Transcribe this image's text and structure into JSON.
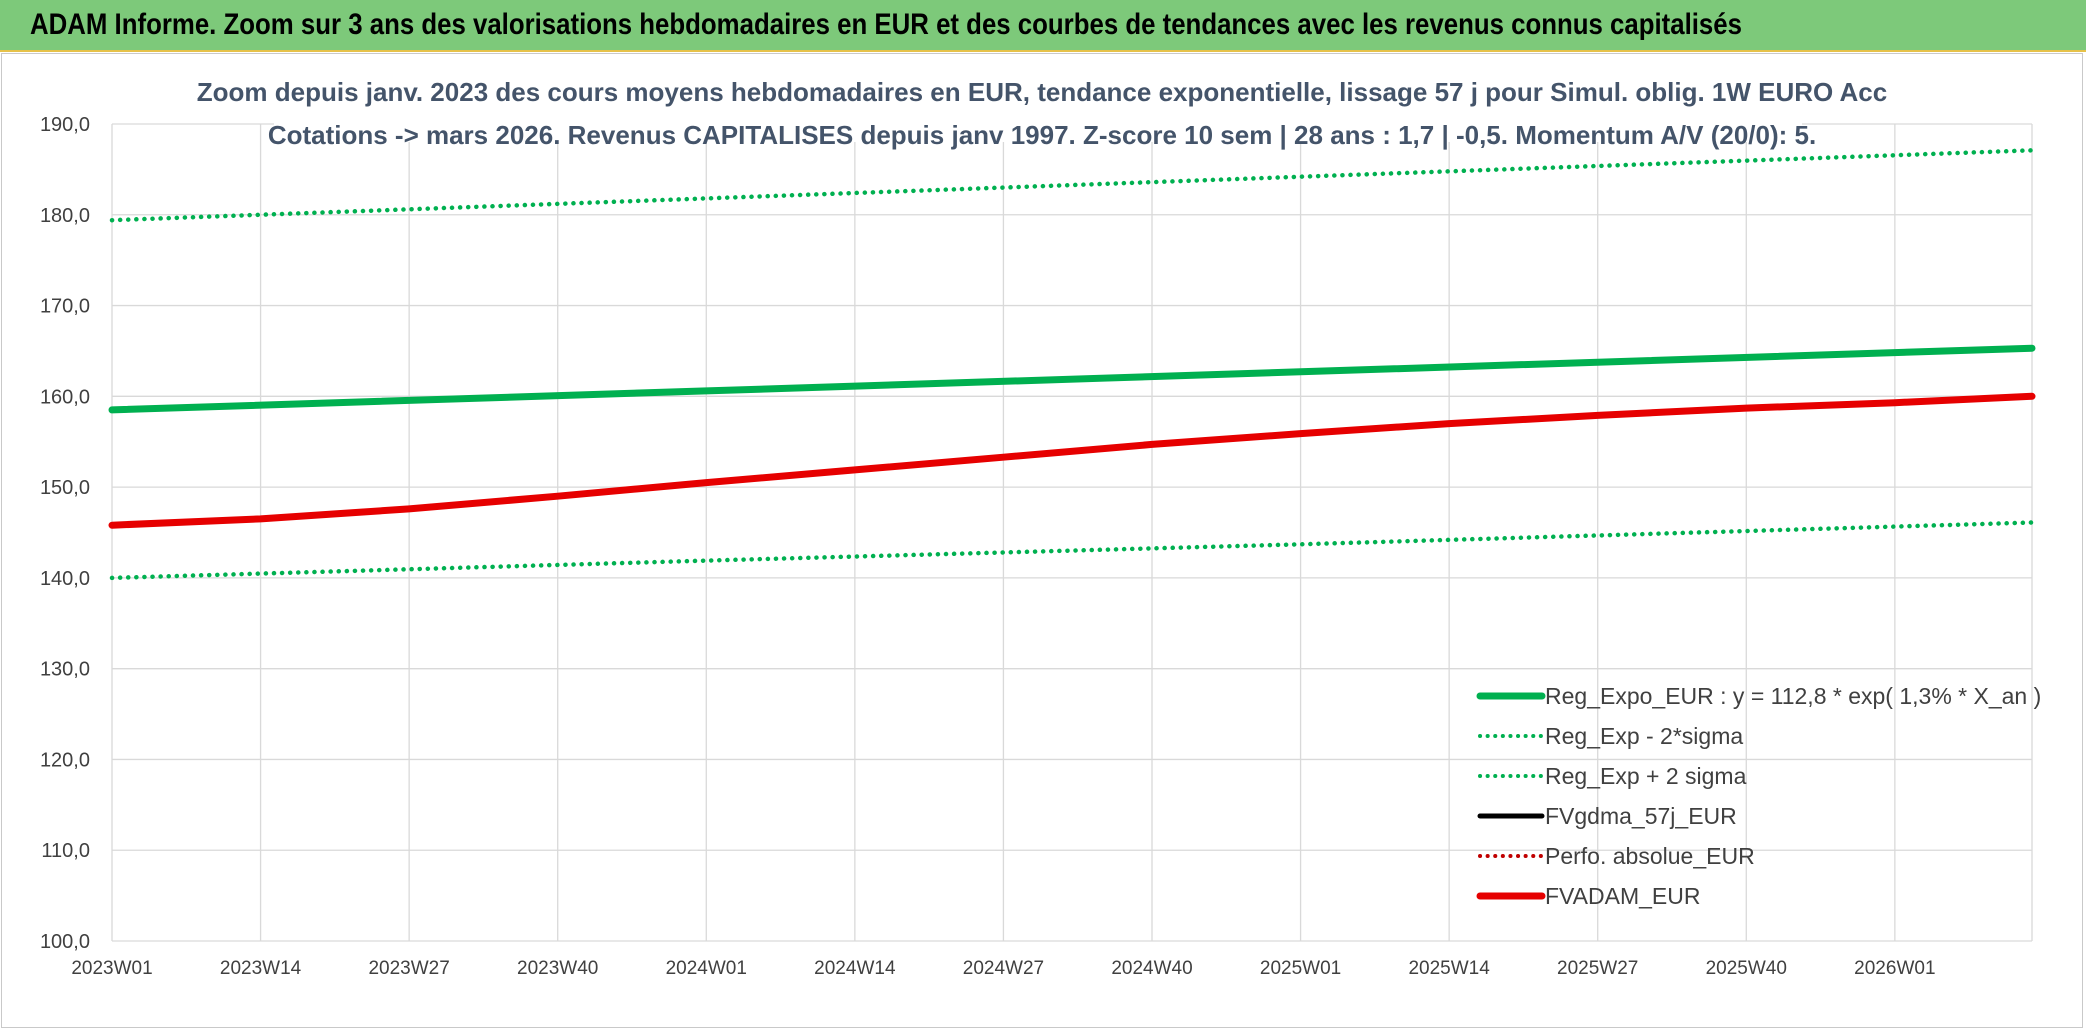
{
  "header": {
    "title": "ADAM Informe. Zoom sur 3 ans des valorisations hebdomadaires en EUR et des courbes de tendances avec les revenus connus capitalisés"
  },
  "chart_data": {
    "type": "line",
    "title_line1": "Zoom depuis janv. 2023 des cours moyens hebdomadaires en EUR, tendance exponentielle, lissage 57 j pour Simul. oblig. 1W EURO Acc",
    "title_line2": "Cotations -> mars 2026. Revenus CAPITALISES depuis janv 1997. Z-score 10 sem | 28 ans : 1,7 | -0,5. Momentum A/V (20/0): 5.",
    "x_tick_labels": [
      "2023W01",
      "2023W14",
      "2023W27",
      "2023W40",
      "2024W01",
      "2024W14",
      "2024W27",
      "2024W40",
      "2025W01",
      "2025W14",
      "2025W27",
      "2025W40",
      "2026W01"
    ],
    "x_start_label": "2023W01",
    "x_end_label": "2026W13",
    "y_tick_labels": [
      "100,0",
      "110,0",
      "120,0",
      "130,0",
      "140,0",
      "150,0",
      "160,0",
      "170,0",
      "180,0",
      "190,0"
    ],
    "ylim": [
      100,
      190
    ],
    "grid": true,
    "legend_position": "bottom-right",
    "series": [
      {
        "name": "Reg_Expo_EUR : y = 112,8 * exp( 1,3% *  X_an )",
        "style": "solid",
        "color": "#00b050",
        "points": [
          [
            "2023W01",
            158.5
          ],
          [
            "2024W01",
            160.6
          ],
          [
            "2025W01",
            162.7
          ],
          [
            "2026W13",
            165.3
          ]
        ]
      },
      {
        "name": "Reg_Exp - 2*sigma",
        "style": "dotted",
        "color": "#00b050",
        "points": [
          [
            "2023W01",
            140.0
          ],
          [
            "2024W01",
            141.9
          ],
          [
            "2025W01",
            143.7
          ],
          [
            "2026W13",
            146.1
          ]
        ]
      },
      {
        "name": "Reg_Exp + 2 sigma",
        "style": "dotted",
        "color": "#00b050",
        "points": [
          [
            "2023W01",
            179.4
          ],
          [
            "2024W01",
            181.8
          ],
          [
            "2025W01",
            184.2
          ],
          [
            "2026W13",
            187.1
          ]
        ]
      },
      {
        "name": "FVgdma_57j_EUR",
        "style": "solid",
        "color": "#000000",
        "points": []
      },
      {
        "name": "Perfo. absolue_EUR",
        "style": "dotted",
        "color": "#c00000",
        "points": []
      },
      {
        "name": "FVADAM_EUR",
        "style": "solid",
        "color": "#e60000",
        "points": [
          [
            "2023W01",
            145.8
          ],
          [
            "2023W14",
            146.5
          ],
          [
            "2023W27",
            147.6
          ],
          [
            "2023W40",
            149.0
          ],
          [
            "2024W01",
            150.5
          ],
          [
            "2024W14",
            151.9
          ],
          [
            "2024W27",
            153.3
          ],
          [
            "2024W40",
            154.7
          ],
          [
            "2025W01",
            155.9
          ],
          [
            "2025W14",
            157.0
          ],
          [
            "2025W27",
            157.9
          ],
          [
            "2025W40",
            158.7
          ],
          [
            "2026W01",
            159.3
          ],
          [
            "2026W13",
            160.0
          ]
        ]
      }
    ]
  },
  "colors": {
    "header_bg": "#7dc97a",
    "title_text": "#44546a",
    "gridline": "#d9d9d9",
    "green": "#00b050",
    "red": "#e60000"
  }
}
